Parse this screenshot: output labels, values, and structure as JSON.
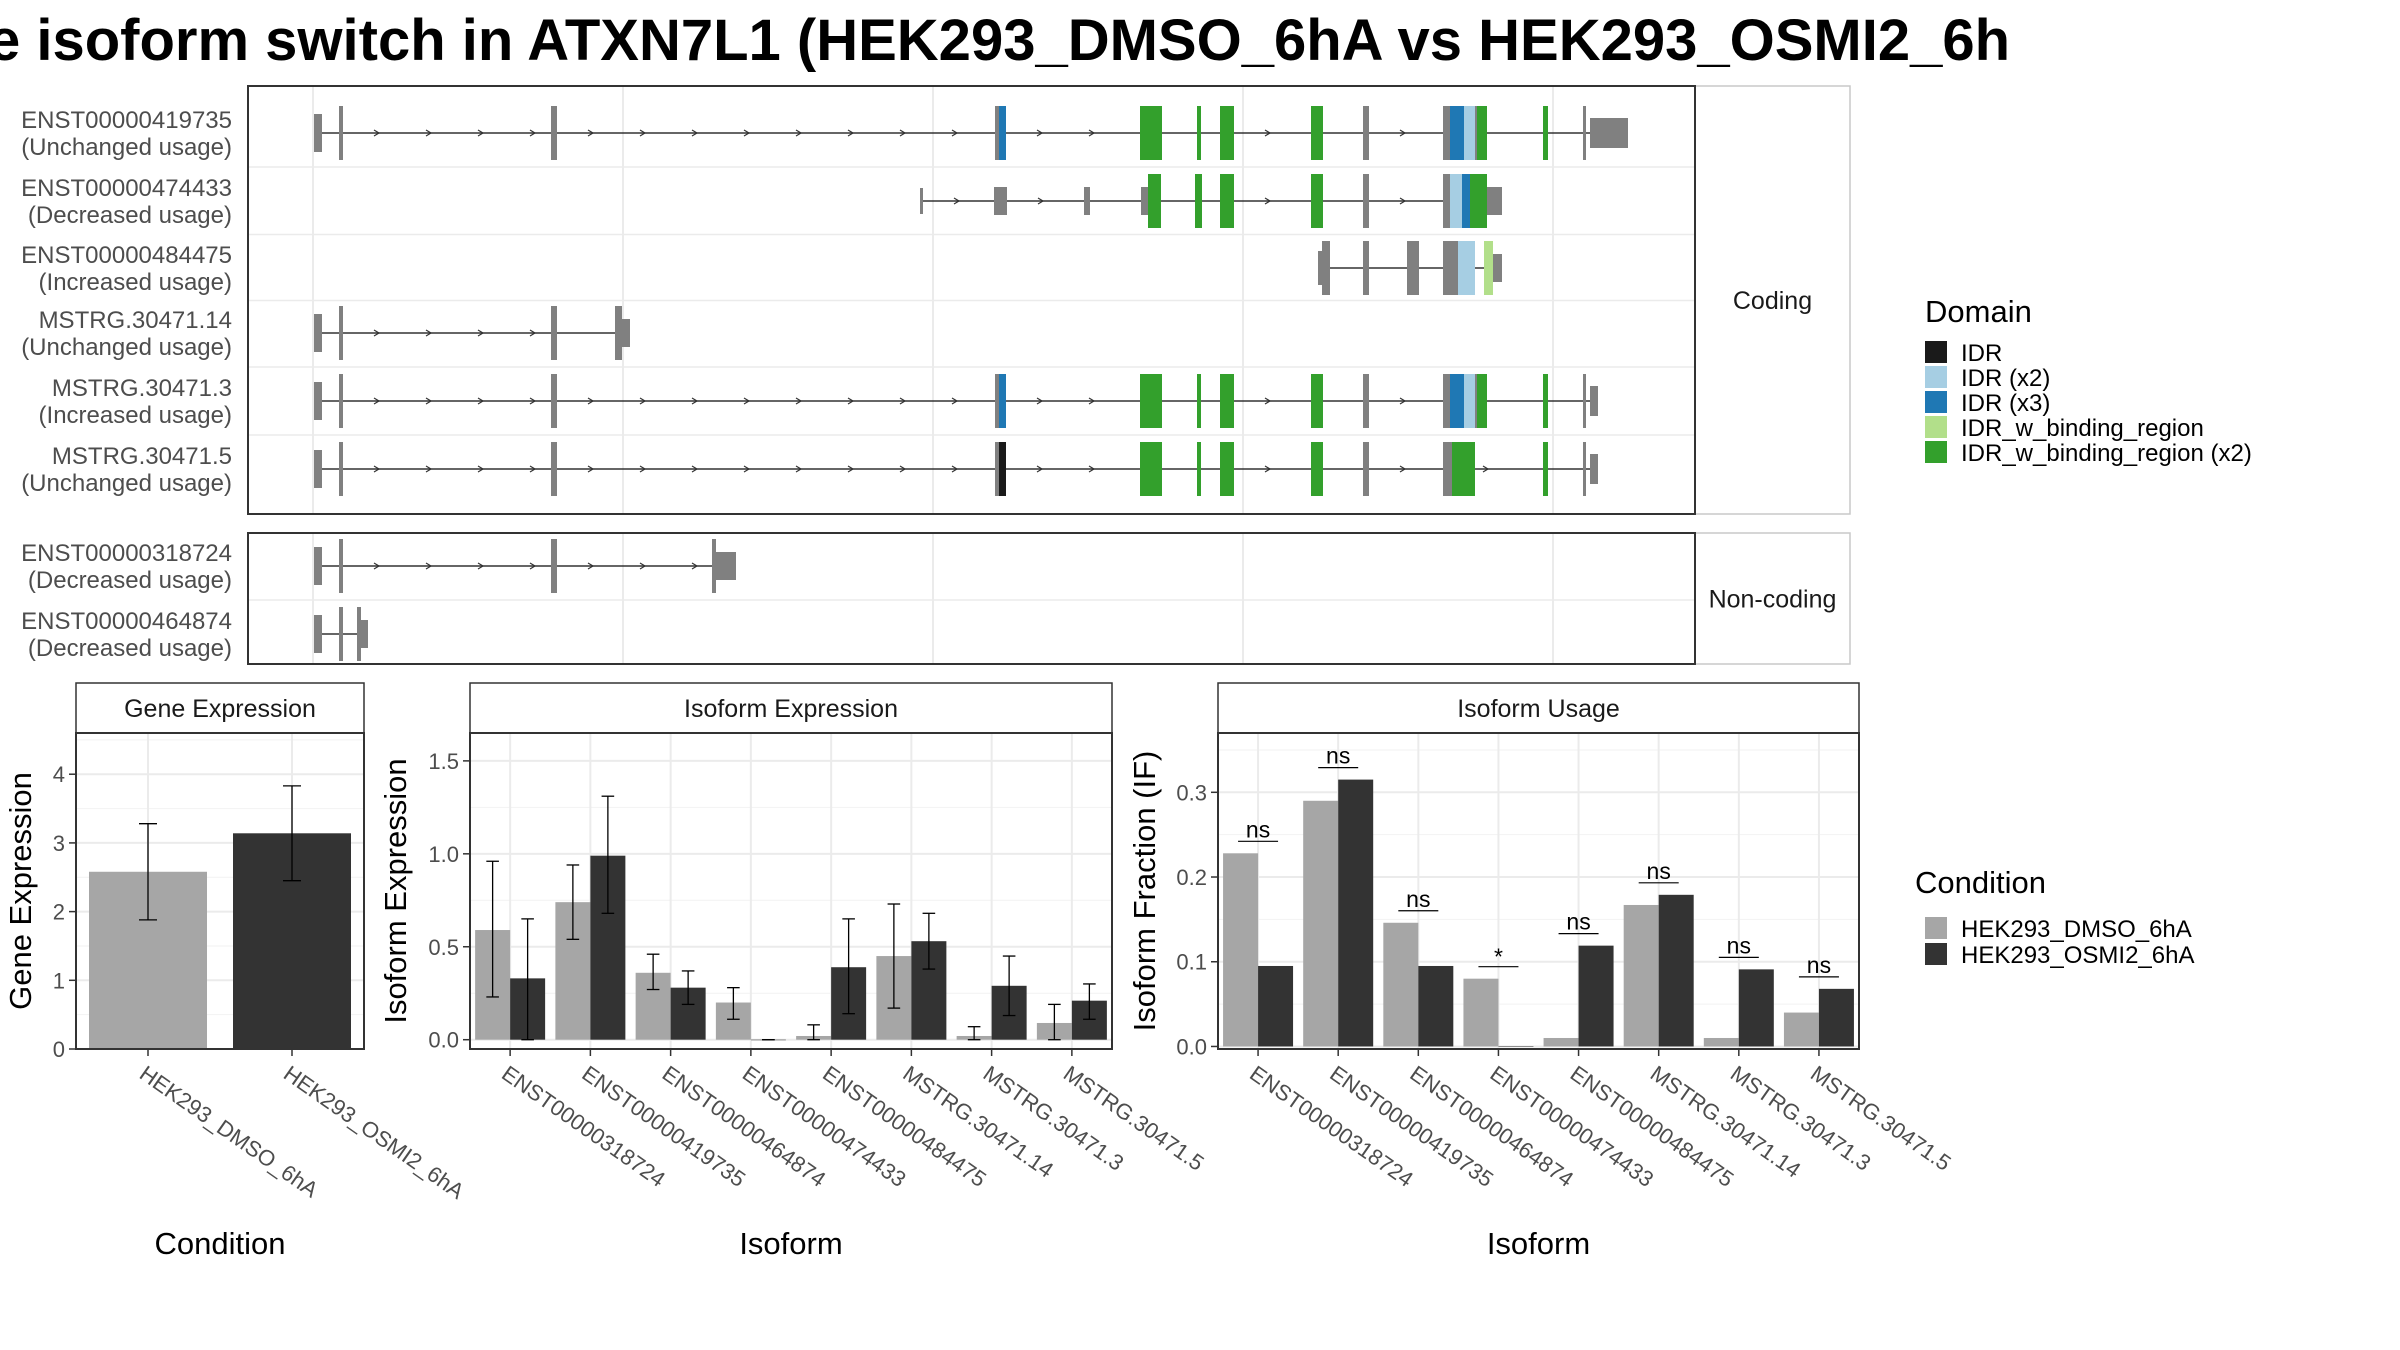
{
  "title": "e isoform switch in ATXN7L1 (HEK293_DMSO_6hA vs HEK293_OSMI2_6h",
  "colors": {
    "exon_grey": "#808080",
    "dmso": "#a6a6a6",
    "osmi": "#333333",
    "grid": "#ebebeb",
    "panel_border": "#333333",
    "IDR": "#1a1a1a",
    "IDR_x2": "#a6cee3",
    "IDR_x3": "#1f78b4",
    "IDR_w_binding_region": "#b2df8a",
    "IDR_w_binding_region_x2": "#33a02c"
  },
  "structure_panels": [
    {
      "label": "Coding",
      "transcripts": [
        {
          "id": "ENST00000419735",
          "usage": "(Unchanged usage)"
        },
        {
          "id": "ENST00000474433",
          "usage": "(Decreased usage)"
        },
        {
          "id": "ENST00000484475",
          "usage": "(Increased usage)"
        },
        {
          "id": "MSTRG.30471.14",
          "usage": "(Unchanged usage)"
        },
        {
          "id": "MSTRG.30471.3",
          "usage": "(Increased usage)"
        },
        {
          "id": "MSTRG.30471.5",
          "usage": "(Unchanged usage)"
        }
      ]
    },
    {
      "label": "Non-coding",
      "transcripts": [
        {
          "id": "ENST00000318724",
          "usage": "(Decreased usage)"
        },
        {
          "id": "ENST00000464874",
          "usage": "(Decreased usage)"
        }
      ]
    }
  ],
  "domain_legend": {
    "title": "Domain",
    "items": [
      {
        "label": "IDR",
        "color": "#1a1a1a"
      },
      {
        "label": "IDR (x2)",
        "color": "#a6cee3"
      },
      {
        "label": "IDR (x3)",
        "color": "#1f78b4"
      },
      {
        "label": "IDR_w_binding_region",
        "color": "#b2df8a"
      },
      {
        "label": "IDR_w_binding_region (x2)",
        "color": "#33a02c"
      }
    ]
  },
  "condition_legend": {
    "title": "Condition",
    "items": [
      {
        "label": "HEK293_DMSO_6hA",
        "color": "#a6a6a6"
      },
      {
        "label": "HEK293_OSMI2_6hA",
        "color": "#333333"
      }
    ]
  },
  "chart_data": [
    {
      "type": "bar",
      "title": "Gene Expression",
      "xlabel": "Condition",
      "ylabel": "Gene Expression",
      "ylim": [
        0,
        4.6
      ],
      "yticks": [
        "0",
        "1",
        "2",
        "3",
        "4"
      ],
      "categories": [
        "HEK293_DMSO_6hA",
        "HEK293_OSMI2_6hA"
      ],
      "values": [
        2.58,
        3.14
      ],
      "err_low": [
        1.88,
        2.45
      ],
      "err_high": [
        3.28,
        3.83
      ]
    },
    {
      "type": "bar",
      "title": "Isoform Expression",
      "xlabel": "Isoform",
      "ylabel": "Isoform Expression",
      "ylim": [
        -0.05,
        1.65
      ],
      "yticks": [
        "0.0",
        "0.5",
        "1.0",
        "1.5"
      ],
      "categories": [
        "ENST00000318724",
        "ENST00000419735",
        "ENST00000464874",
        "ENST00000474433",
        "ENST00000484475",
        "MSTRG.30471.14",
        "MSTRG.30471.3",
        "MSTRG.30471.5"
      ],
      "series": [
        {
          "name": "HEK293_DMSO_6hA",
          "values": [
            0.59,
            0.74,
            0.36,
            0.2,
            0.02,
            0.45,
            0.02,
            0.09
          ],
          "err_low": [
            0.23,
            0.54,
            0.27,
            0.11,
            0.0,
            0.17,
            0.0,
            0.0
          ],
          "err_high": [
            0.96,
            0.94,
            0.46,
            0.28,
            0.08,
            0.73,
            0.07,
            0.19
          ]
        },
        {
          "name": "HEK293_OSMI2_6hA",
          "values": [
            0.33,
            0.99,
            0.28,
            0.0,
            0.39,
            0.53,
            0.29,
            0.21
          ],
          "err_low": [
            0.0,
            0.68,
            0.19,
            0.0,
            0.14,
            0.38,
            0.13,
            0.11
          ],
          "err_high": [
            0.65,
            1.31,
            0.37,
            0.0,
            0.65,
            0.68,
            0.45,
            0.3
          ]
        }
      ]
    },
    {
      "type": "bar",
      "title": "Isoform Usage",
      "xlabel": "Isoform",
      "ylabel": "Isoform Fraction (IF)",
      "ylim": [
        -0.003,
        0.37
      ],
      "yticks": [
        "0.0",
        "0.1",
        "0.2",
        "0.3"
      ],
      "categories": [
        "ENST00000318724",
        "ENST00000419735",
        "ENST00000464874",
        "ENST00000474433",
        "ENST00000484475",
        "MSTRG.30471.14",
        "MSTRG.30471.3",
        "MSTRG.30471.5"
      ],
      "series": [
        {
          "name": "HEK293_DMSO_6hA",
          "values": [
            0.228,
            0.29,
            0.146,
            0.08,
            0.01,
            0.167,
            0.01,
            0.04
          ]
        },
        {
          "name": "HEK293_OSMI2_6hA",
          "values": [
            0.095,
            0.315,
            0.095,
            0.0,
            0.119,
            0.179,
            0.091,
            0.068
          ]
        }
      ],
      "significance": [
        "ns",
        "ns",
        "ns",
        "*",
        "ns",
        "ns",
        "ns",
        "ns"
      ]
    }
  ]
}
